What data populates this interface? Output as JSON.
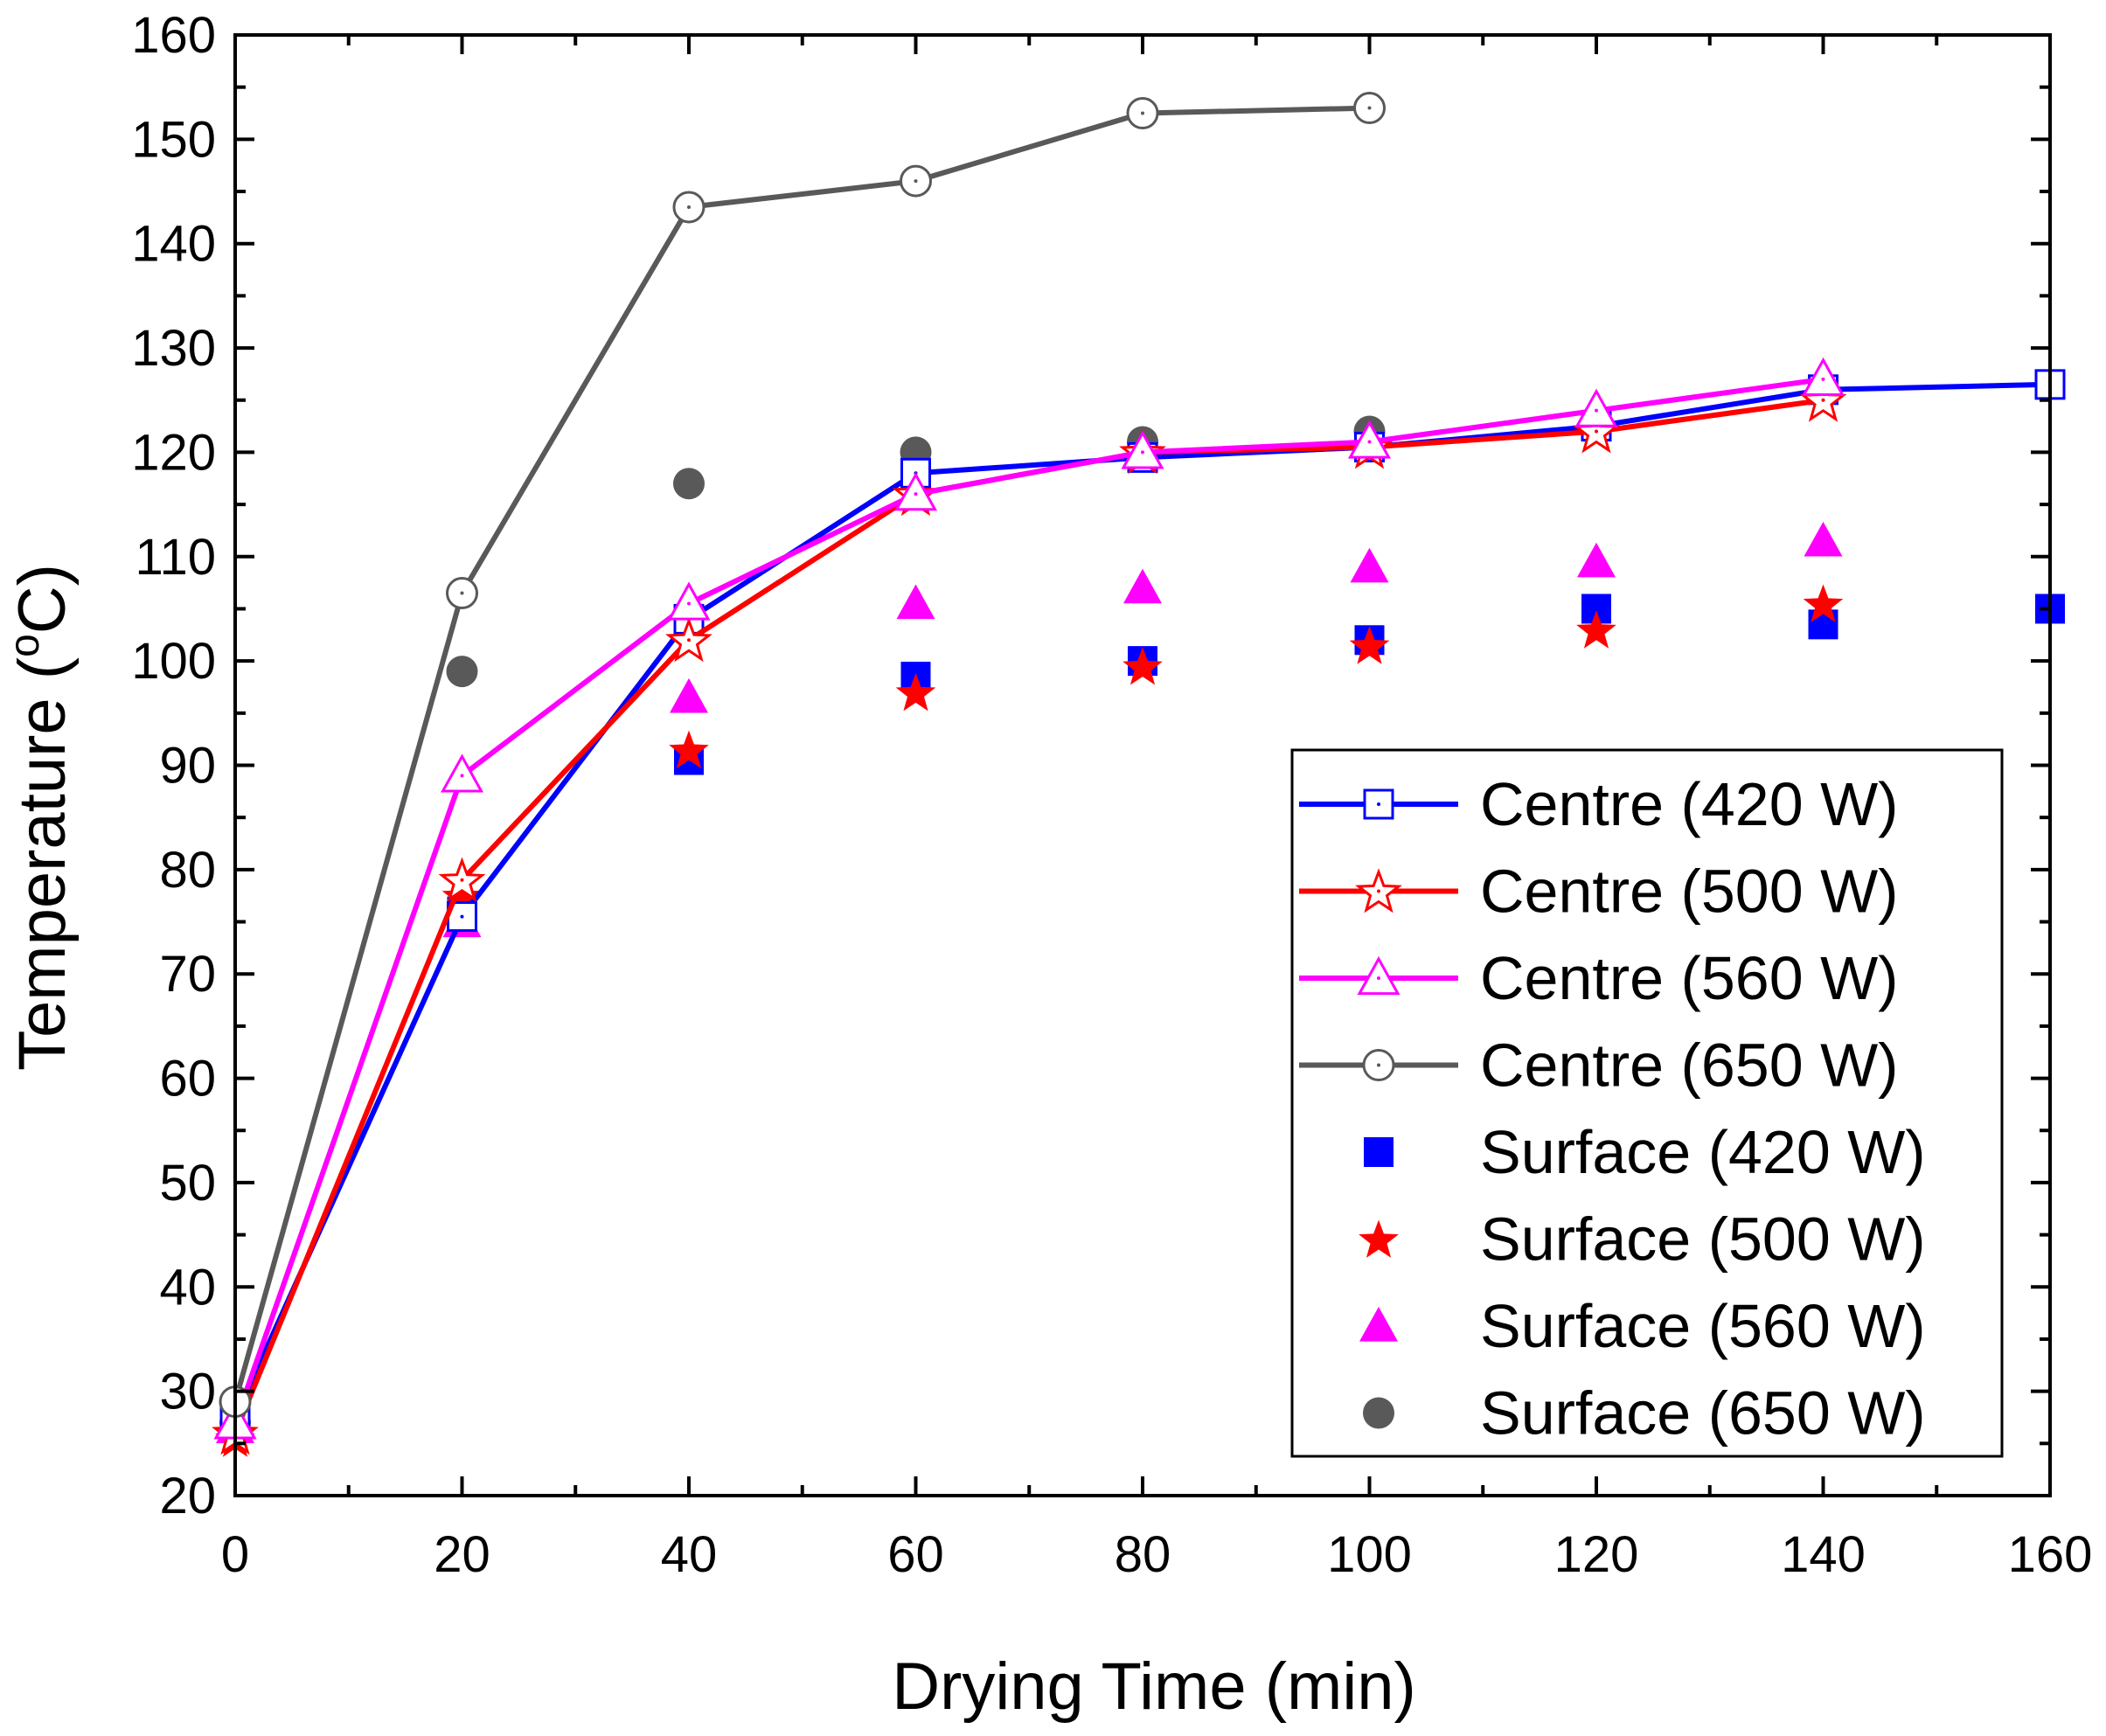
{
  "chart_data": {
    "type": "line",
    "title": "",
    "xlabel": "Drying Time (min)",
    "ylabel_main": "Temperature (",
    "ylabel_deg": "o",
    "ylabel_unit": "C)",
    "xlim": [
      0,
      160
    ],
    "ylim": [
      20,
      160
    ],
    "xticks": [
      0,
      20,
      40,
      60,
      80,
      100,
      120,
      140,
      160
    ],
    "yticks": [
      20,
      30,
      40,
      50,
      60,
      70,
      80,
      90,
      100,
      110,
      120,
      130,
      140,
      150,
      160
    ],
    "grid": false,
    "legend_position": "bottom-right",
    "series": [
      {
        "name": "Centre (420 W)",
        "style": "line",
        "marker": "square-open",
        "color": "#0000ff",
        "x": [
          0,
          20,
          40,
          60,
          80,
          100,
          120,
          140,
          160
        ],
        "y": [
          27.5,
          75.5,
          104,
          118,
          119.5,
          120.5,
          122.5,
          126,
          126.5
        ]
      },
      {
        "name": "Centre (500 W)",
        "style": "line",
        "marker": "star-open",
        "color": "#ff0000",
        "x": [
          0,
          20,
          40,
          60,
          80,
          100,
          120,
          140
        ],
        "y": [
          26,
          79,
          102,
          116,
          120,
          120.5,
          122,
          125
        ]
      },
      {
        "name": "Centre (560 W)",
        "style": "line",
        "marker": "triangle-open",
        "color": "#ff00ff",
        "x": [
          0,
          20,
          40,
          60,
          80,
          100,
          120,
          140
        ],
        "y": [
          27,
          89,
          105.5,
          116,
          120,
          121,
          124,
          127
        ]
      },
      {
        "name": "Centre (650 W)",
        "style": "line",
        "marker": "circle-open",
        "color": "#595959",
        "x": [
          0,
          20,
          40,
          60,
          80,
          100
        ],
        "y": [
          29,
          106.5,
          143.5,
          146,
          152.5,
          153
        ]
      },
      {
        "name": "Surface (420 W)",
        "style": "scatter",
        "marker": "square",
        "color": "#0000ff",
        "x": [
          0,
          20,
          40,
          60,
          80,
          100,
          120,
          140,
          160
        ],
        "y": [
          27.5,
          76,
          90.5,
          98.5,
          100,
          102,
          105,
          103.5,
          105
        ]
      },
      {
        "name": "Surface (500 W)",
        "style": "scatter",
        "marker": "star",
        "color": "#ff0000",
        "x": [
          0,
          20,
          40,
          60,
          80,
          100,
          120,
          140
        ],
        "y": [
          25.5,
          77.5,
          91.5,
          97,
          99.5,
          101.5,
          103,
          105.5
        ]
      },
      {
        "name": "Surface (560 W)",
        "style": "scatter",
        "marker": "triangle",
        "color": "#ff00ff",
        "x": [
          0,
          20,
          40,
          60,
          80,
          100,
          120,
          140
        ],
        "y": [
          26.5,
          75,
          96.5,
          105.5,
          107,
          109,
          109.5,
          111.5
        ]
      },
      {
        "name": "Surface (650 W)",
        "style": "scatter",
        "marker": "circle",
        "color": "#595959",
        "x": [
          0,
          20,
          40,
          60,
          80,
          100
        ],
        "y": [
          27,
          99,
          117,
          120,
          121,
          122
        ]
      }
    ]
  }
}
